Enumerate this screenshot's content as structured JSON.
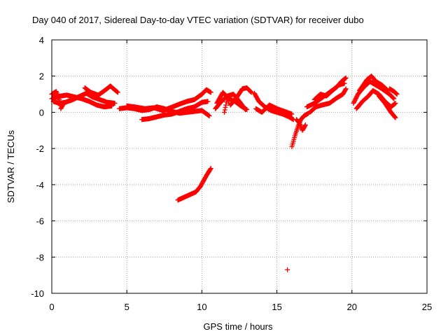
{
  "chart_data": {
    "type": "scatter",
    "title": "Day 040 of 2017, Sidereal Day-to-day VTEC variation (SDTVAR) for receiver dubo",
    "xlabel": "GPS time / hours",
    "ylabel": "SDTVAR / TECUs",
    "xlim": [
      0,
      25
    ],
    "ylim": [
      -10,
      4
    ],
    "xticks": [
      0,
      5,
      10,
      15,
      20,
      25
    ],
    "yticks": [
      -10,
      -8,
      -6,
      -4,
      -2,
      0,
      2,
      4
    ],
    "grid": true,
    "marker": "+",
    "color": "#ff0000",
    "series": [
      {
        "name": "SDTVAR",
        "tracks": [
          [
            [
              0.0,
              0.75
            ],
            [
              0.3,
              0.85
            ],
            [
              0.6,
              0.9
            ],
            [
              1.0,
              0.95
            ],
            [
              1.5,
              0.85
            ],
            [
              2.0,
              0.75
            ],
            [
              2.5,
              0.6
            ],
            [
              3.0,
              0.4
            ],
            [
              3.5,
              0.3
            ],
            [
              4.0,
              0.35
            ]
          ],
          [
            [
              0.1,
              0.6
            ],
            [
              0.5,
              0.5
            ],
            [
              0.9,
              0.55
            ],
            [
              1.4,
              0.7
            ],
            [
              1.9,
              0.9
            ],
            [
              2.3,
              1.05
            ],
            [
              2.7,
              0.85
            ],
            [
              3.2,
              0.7
            ],
            [
              3.7,
              0.55
            ],
            [
              4.2,
              0.5
            ]
          ],
          [
            [
              0.0,
              1.0
            ],
            [
              0.3,
              1.15
            ],
            [
              0.5,
              0.7
            ],
            [
              0.6,
              0.2
            ],
            [
              0.8,
              0.5
            ]
          ],
          [
            [
              2.2,
              1.35
            ],
            [
              2.6,
              1.1
            ],
            [
              3.1,
              0.95
            ],
            [
              3.6,
              1.25
            ],
            [
              3.9,
              1.45
            ],
            [
              4.4,
              1.1
            ]
          ],
          [
            [
              4.5,
              0.2
            ],
            [
              5.0,
              0.25
            ],
            [
              5.5,
              0.2
            ],
            [
              6.0,
              0.1
            ],
            [
              6.5,
              0.15
            ],
            [
              7.0,
              0.3
            ],
            [
              7.5,
              0.2
            ],
            [
              8.0,
              0.05
            ],
            [
              8.5,
              -0.05
            ],
            [
              9.0,
              0.0
            ],
            [
              9.5,
              0.05
            ],
            [
              10.0,
              0.1
            ],
            [
              10.5,
              -0.2
            ]
          ],
          [
            [
              5.0,
              0.35
            ],
            [
              5.5,
              0.3
            ],
            [
              6.2,
              0.2
            ],
            [
              6.8,
              0.25
            ],
            [
              7.4,
              0.1
            ],
            [
              7.9,
              0.25
            ],
            [
              8.5,
              0.45
            ],
            [
              9.0,
              0.6
            ],
            [
              9.5,
              0.7
            ],
            [
              10.0,
              1.0
            ],
            [
              10.3,
              1.25
            ],
            [
              10.6,
              1.1
            ]
          ],
          [
            [
              6.0,
              -0.4
            ],
            [
              6.5,
              -0.35
            ],
            [
              7.0,
              -0.25
            ],
            [
              7.5,
              -0.15
            ],
            [
              8.0,
              -0.1
            ],
            [
              8.5,
              0.05
            ],
            [
              9.0,
              0.2
            ],
            [
              9.5,
              0.3
            ],
            [
              10.0,
              0.55
            ],
            [
              10.4,
              0.6
            ]
          ],
          [
            [
              8.4,
              -4.85
            ],
            [
              8.8,
              -4.7
            ],
            [
              9.2,
              -4.55
            ],
            [
              9.6,
              -4.4
            ],
            [
              9.9,
              -4.1
            ],
            [
              10.1,
              -3.8
            ],
            [
              10.3,
              -3.5
            ],
            [
              10.6,
              -3.1
            ]
          ],
          [
            [
              10.9,
              0.2
            ],
            [
              11.3,
              0.6
            ],
            [
              11.7,
              0.9
            ],
            [
              12.1,
              1.0
            ],
            [
              12.5,
              0.6
            ],
            [
              12.9,
              0.15
            ]
          ],
          [
            [
              11.0,
              0.5
            ],
            [
              11.4,
              1.1
            ],
            [
              11.8,
              0.75
            ],
            [
              12.2,
              0.6
            ],
            [
              12.6,
              0.35
            ],
            [
              13.0,
              0.15
            ]
          ],
          [
            [
              11.9,
              0.4
            ],
            [
              12.3,
              0.8
            ],
            [
              12.7,
              1.3
            ],
            [
              13.0,
              1.35
            ],
            [
              13.3,
              1.1
            ]
          ],
          [
            [
              11.5,
              0.0
            ],
            [
              11.6,
              0.4
            ],
            [
              11.7,
              0.9
            ],
            [
              11.8,
              0.5
            ]
          ],
          [
            [
              13.5,
              1.05
            ],
            [
              13.8,
              0.6
            ],
            [
              14.2,
              0.3
            ],
            [
              14.6,
              0.1
            ],
            [
              15.0,
              0.0
            ],
            [
              15.4,
              -0.1
            ],
            [
              15.8,
              -0.25
            ],
            [
              16.1,
              -0.4
            ]
          ],
          [
            [
              13.6,
              0.2
            ],
            [
              14.0,
              0.0
            ],
            [
              14.5,
              0.4
            ],
            [
              15.0,
              0.2
            ],
            [
              15.5,
              0.05
            ],
            [
              16.0,
              -0.1
            ]
          ],
          [
            [
              16.0,
              -1.9
            ],
            [
              16.2,
              -1.3
            ],
            [
              16.4,
              -0.8
            ],
            [
              16.6,
              -0.4
            ],
            [
              16.8,
              -0.2
            ],
            [
              17.1,
              -0.05
            ]
          ],
          [
            [
              16.3,
              -0.4
            ],
            [
              16.5,
              -0.6
            ],
            [
              16.7,
              -1.0
            ],
            [
              16.9,
              -0.7
            ]
          ],
          [
            [
              17.0,
              0.3
            ],
            [
              17.5,
              0.5
            ],
            [
              18.0,
              0.8
            ],
            [
              18.5,
              1.1
            ],
            [
              19.0,
              1.4
            ],
            [
              19.3,
              1.7
            ],
            [
              19.6,
              1.9
            ]
          ],
          [
            [
              17.2,
              0.0
            ],
            [
              17.6,
              0.3
            ],
            [
              18.0,
              0.4
            ],
            [
              18.5,
              0.5
            ],
            [
              19.0,
              0.8
            ],
            [
              19.4,
              1.0
            ],
            [
              19.6,
              1.3
            ]
          ],
          [
            [
              17.5,
              0.7
            ],
            [
              17.9,
              1.0
            ],
            [
              18.3,
              0.9
            ],
            [
              18.7,
              1.2
            ],
            [
              19.1,
              1.5
            ],
            [
              19.5,
              1.6
            ]
          ],
          [
            [
              20.1,
              0.5
            ],
            [
              20.4,
              1.0
            ],
            [
              20.8,
              1.4
            ],
            [
              21.2,
              1.7
            ],
            [
              21.5,
              1.55
            ],
            [
              22.0,
              1.3
            ],
            [
              22.5,
              1.0
            ],
            [
              22.8,
              0.75
            ]
          ],
          [
            [
              20.3,
              0.2
            ],
            [
              20.7,
              0.6
            ],
            [
              21.1,
              0.9
            ],
            [
              21.4,
              1.2
            ],
            [
              21.8,
              1.0
            ],
            [
              22.2,
              0.6
            ],
            [
              22.6,
              0.3
            ],
            [
              22.9,
              0.5
            ]
          ],
          [
            [
              20.5,
              1.2
            ],
            [
              21.0,
              1.8
            ],
            [
              21.3,
              2.0
            ],
            [
              21.6,
              1.7
            ],
            [
              22.0,
              1.5
            ],
            [
              22.4,
              1.2
            ]
          ],
          [
            [
              21.8,
              0.9
            ],
            [
              22.2,
              0.5
            ],
            [
              22.6,
              0.0
            ],
            [
              22.9,
              -0.3
            ]
          ],
          [
            [
              22.5,
              1.3
            ],
            [
              22.8,
              1.15
            ],
            [
              23.0,
              1.0
            ]
          ]
        ],
        "points": [
          [
            15.7,
            -8.7
          ]
        ]
      }
    ]
  }
}
